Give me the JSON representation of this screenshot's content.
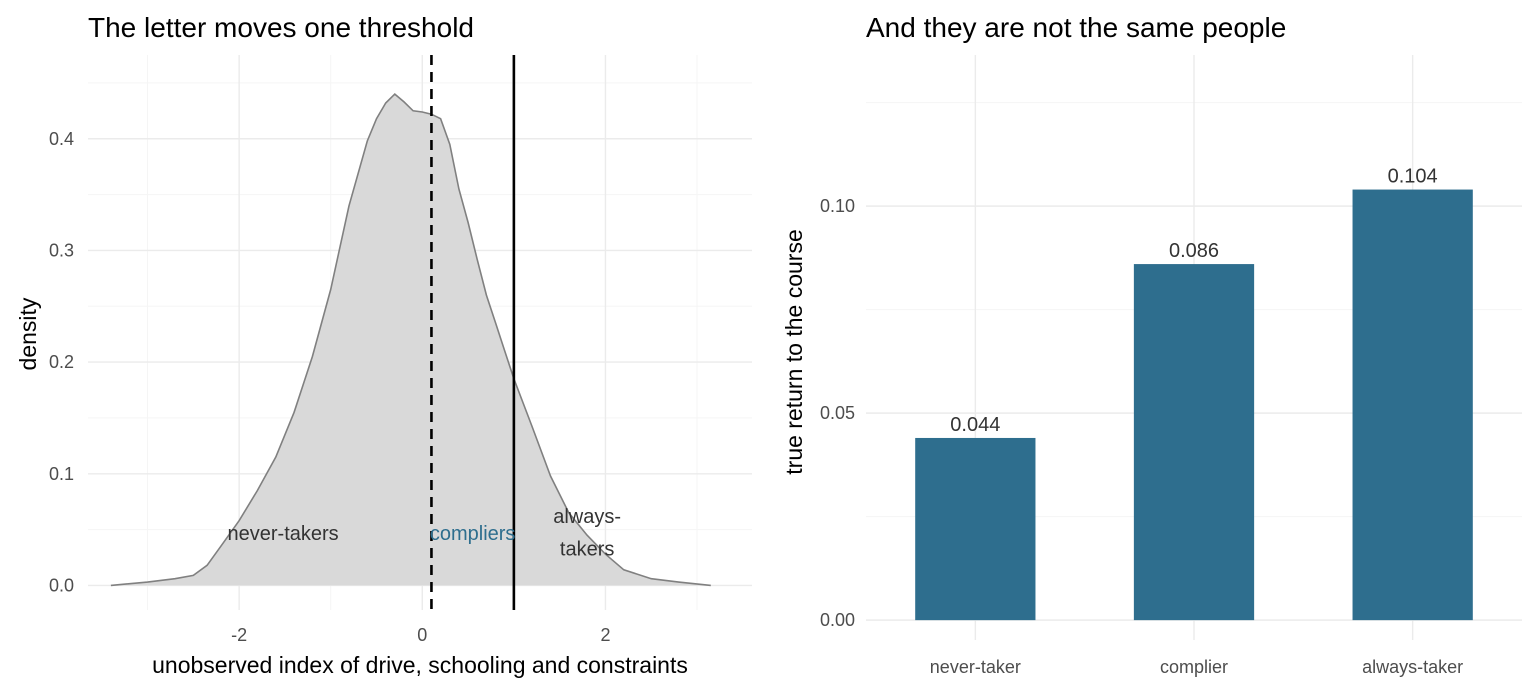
{
  "colors": {
    "bar": "#2e6e8e",
    "density_fill": "#d9d9d9",
    "density_line": "#808080",
    "annot_dark": "#333333",
    "annot_accent": "#2e6e8e"
  },
  "chart_data": [
    {
      "type": "area",
      "title": "The letter moves one threshold",
      "xlabel": "unobserved index of drive, schooling and constraints",
      "ylabel": "density",
      "xlim": [
        -3.65,
        3.6
      ],
      "ylim": [
        -0.022,
        0.475
      ],
      "x_ticks": [
        -2,
        0,
        2
      ],
      "x_tick_labels": [
        "-2",
        "0",
        "2"
      ],
      "y_ticks": [
        0.0,
        0.1,
        0.2,
        0.3,
        0.4
      ],
      "y_tick_labels": [
        "0.0",
        "0.1",
        "0.2",
        "0.3",
        "0.4"
      ],
      "grid": true,
      "thresholds": [
        {
          "x": 0.1,
          "style": "dashed"
        },
        {
          "x": 1.0,
          "style": "solid"
        }
      ],
      "x": [
        -3.4,
        -3.0,
        -2.7,
        -2.5,
        -2.35,
        -2.2,
        -2.0,
        -1.8,
        -1.6,
        -1.4,
        -1.2,
        -1.0,
        -0.8,
        -0.6,
        -0.5,
        -0.4,
        -0.3,
        -0.2,
        -0.1,
        0.0,
        0.1,
        0.2,
        0.3,
        0.4,
        0.5,
        0.6,
        0.7,
        0.8,
        0.9,
        1.0,
        1.2,
        1.4,
        1.6,
        1.8,
        2.0,
        2.2,
        2.5,
        2.8,
        3.15
      ],
      "y": [
        0.0,
        0.003,
        0.006,
        0.009,
        0.018,
        0.035,
        0.058,
        0.085,
        0.115,
        0.155,
        0.205,
        0.265,
        0.34,
        0.398,
        0.418,
        0.432,
        0.44,
        0.433,
        0.425,
        0.424,
        0.422,
        0.418,
        0.395,
        0.355,
        0.325,
        0.292,
        0.26,
        0.235,
        0.21,
        0.185,
        0.142,
        0.098,
        0.065,
        0.045,
        0.028,
        0.014,
        0.006,
        0.003,
        0.0
      ],
      "annotations": [
        {
          "text": "never-takers",
          "x": -1.52,
          "y": 0.047,
          "color": "dark"
        },
        {
          "text": "compliers",
          "x": 0.55,
          "y": 0.047,
          "color": "accent"
        },
        {
          "text": "always-",
          "x": 1.8,
          "y": 0.062,
          "color": "dark"
        },
        {
          "text": "takers",
          "x": 1.8,
          "y": 0.033,
          "color": "dark"
        }
      ]
    },
    {
      "type": "bar",
      "title": "And they are not the same people",
      "xlabel": "",
      "ylabel": "true return to the course",
      "categories": [
        "never-taker",
        "complier",
        "always-taker"
      ],
      "values": [
        0.044,
        0.086,
        0.104
      ],
      "value_labels": [
        "0.044",
        "0.086",
        "0.104"
      ],
      "ylim": [
        -0.0048,
        0.1365
      ],
      "y_ticks": [
        0.0,
        0.05,
        0.1
      ],
      "y_tick_labels": [
        "0.00",
        "0.05",
        "0.10"
      ],
      "grid": true
    }
  ]
}
